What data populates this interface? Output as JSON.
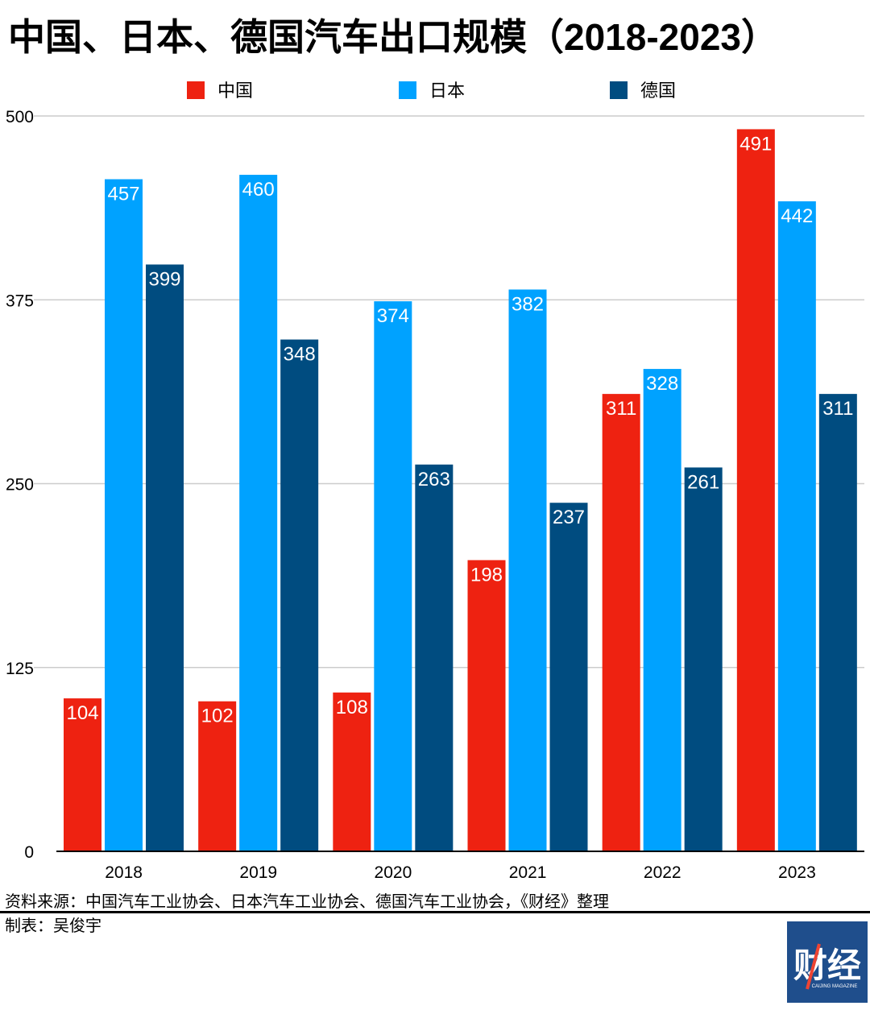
{
  "chart_data": {
    "type": "bar",
    "title": "中国、日本、德国汽车出口规模（2018-2023）",
    "categories": [
      "2018",
      "2019",
      "2020",
      "2021",
      "2022",
      "2023"
    ],
    "series": [
      {
        "name": "中国",
        "color": "#EE2211",
        "values": [
          104,
          102,
          108,
          198,
          311,
          491
        ]
      },
      {
        "name": "日本",
        "color": "#00A2FF",
        "values": [
          457,
          460,
          374,
          382,
          328,
          442
        ]
      },
      {
        "name": "德国",
        "color": "#004C80",
        "values": [
          399,
          348,
          263,
          237,
          261,
          311
        ]
      }
    ],
    "ylim": [
      0,
      500
    ],
    "yticks": [
      0,
      125,
      250,
      375,
      500
    ],
    "grid": true,
    "legend_position": "top-center",
    "data_labels": "inside-top"
  },
  "footer": {
    "source": "资料来源：中国汽车工业协会、日本汽车工业协会、德国汽车工业协会，《财经》整理",
    "author": "制表：吴俊宇"
  },
  "logo": {
    "text": "财经",
    "subtext": "CAIJING MAGAZINE",
    "color": "#1F4E8C"
  }
}
